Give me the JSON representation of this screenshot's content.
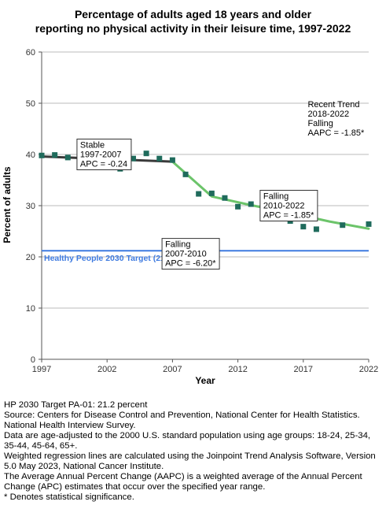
{
  "chart_data": {
    "type": "scatter",
    "title": [
      "Percentage of adults aged 18 years and older",
      "reporting no physical activity in their leisure time, 1997-2022"
    ],
    "xlabel": "Year",
    "ylabel": "Percent of adults",
    "xlim": [
      1997,
      2022
    ],
    "ylim": [
      0,
      60
    ],
    "xticks": [
      1997,
      2002,
      2007,
      2012,
      2017,
      2022
    ],
    "yticks": [
      0,
      10,
      20,
      30,
      40,
      50,
      60
    ],
    "grid": true,
    "colors": {
      "points": "#1f6b5c",
      "trend_1997_2007": "#3a3a3a",
      "trend_2007_2022": "#6cc46a",
      "target_line": "#3f7be0",
      "grid": "#bbbbbb"
    },
    "points": {
      "x": [
        1997,
        1998,
        1999,
        2000,
        2001,
        2002,
        2003,
        2004,
        2005,
        2006,
        2007,
        2008,
        2009,
        2010,
        2011,
        2012,
        2013,
        2014,
        2015,
        2016,
        2017,
        2018,
        2020,
        2022
      ],
      "y": [
        39.8,
        39.9,
        39.4,
        38.7,
        37.5,
        37.5,
        37.2,
        39.2,
        40.2,
        39.2,
        38.9,
        36.1,
        32.3,
        32.4,
        31.5,
        29.8,
        30.3,
        30.1,
        30.1,
        27.0,
        25.9,
        25.4,
        26.2,
        26.4
      ]
    },
    "trend_lines": [
      {
        "segment": "stable",
        "x": [
          1997,
          2007
        ],
        "y": [
          39.6,
          38.6
        ]
      },
      {
        "segment": "falling",
        "x": [
          2007,
          2010,
          2013,
          2016,
          2019,
          2022
        ],
        "y": [
          38.6,
          31.8,
          30.1,
          28.6,
          26.9,
          25.5
        ]
      }
    ],
    "target": {
      "value": 21.2,
      "label": "Healthy People 2030 Target (21.2)"
    },
    "annotations": [
      {
        "lines": [
          "Stable",
          "1997-2007",
          "APC = -0.24"
        ],
        "anchor_year": 1999.7,
        "anchor_value": 43.0,
        "boxed": true
      },
      {
        "lines": [
          "Falling",
          "2007-2010",
          "APC = -6.20*"
        ],
        "anchor_year": 2006.2,
        "anchor_value": 23.6,
        "boxed": true
      },
      {
        "lines": [
          "Falling",
          "2010-2022",
          "APC = -1.85*"
        ],
        "anchor_year": 2013.7,
        "anchor_value": 33.0,
        "boxed": true
      },
      {
        "lines": [
          "Recent Trend",
          "2018-2022",
          "Falling",
          "AAPC = -1.85*"
        ],
        "anchor_year": 2017.1,
        "anchor_value": 50.9,
        "boxed": false
      }
    ]
  },
  "footnotes": [
    "HP 2030 Target PA-01: 21.2 percent",
    "Source: Centers for Disease Control and Prevention, National Center for Health Statistics. National Health Interview Survey.",
    "Data are age-adjusted to the 2000 U.S. standard population using age groups: 18-24, 25-34, 35-44, 45-64, 65+.",
    "Weighted regression lines are calculated using the Joinpoint Trend Analysis Software, Version 5.0 May 2023, National Cancer Institute.",
    "The Average Annual Percent Change (AAPC) is a weighted average of the Annual Percent Change (APC) estimates that occur over the specified year range.",
    "* Denotes statistical significance."
  ]
}
